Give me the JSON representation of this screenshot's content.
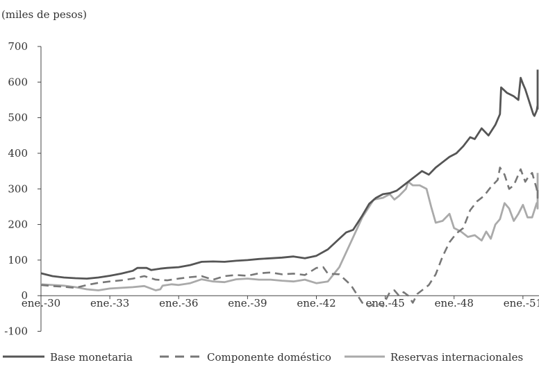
{
  "chart_data": {
    "type": "line",
    "unit_label": "(miles de pesos)",
    "x_tick_labels": [
      "ene.-30",
      "ene.-33",
      "ene.-36",
      "ene.-39",
      "ene.-42",
      "ene.-45",
      "ene.-48",
      "ene.-51"
    ],
    "x_tick_years": [
      1930,
      1933,
      1936,
      1939,
      1942,
      1945,
      1948,
      1951
    ],
    "xlim": [
      1930,
      1951.7
    ],
    "y_ticks": [
      -100,
      0,
      100,
      200,
      300,
      400,
      500,
      600,
      700
    ],
    "y_tick_labels": [
      "-100",
      "0",
      "100",
      "200",
      "300",
      "400",
      "500",
      "600",
      "700"
    ],
    "ylim": [
      -100,
      700
    ],
    "grid": false,
    "legend_position": "bottom",
    "series": [
      {
        "name": "Base monetaria",
        "color": "#555555",
        "style": "solid",
        "points": [
          [
            1930.0,
            63
          ],
          [
            1930.5,
            55
          ],
          [
            1931.0,
            51
          ],
          [
            1931.5,
            49
          ],
          [
            1932.0,
            48
          ],
          [
            1932.5,
            51
          ],
          [
            1933.0,
            56
          ],
          [
            1933.5,
            62
          ],
          [
            1934.0,
            70
          ],
          [
            1934.2,
            78
          ],
          [
            1934.6,
            78
          ],
          [
            1934.8,
            72
          ],
          [
            1935.2,
            76
          ],
          [
            1935.5,
            78
          ],
          [
            1936.0,
            80
          ],
          [
            1936.5,
            86
          ],
          [
            1937.0,
            95
          ],
          [
            1937.5,
            96
          ],
          [
            1938.0,
            95
          ],
          [
            1938.5,
            98
          ],
          [
            1939.0,
            100
          ],
          [
            1939.5,
            103
          ],
          [
            1940.0,
            105
          ],
          [
            1940.5,
            107
          ],
          [
            1941.0,
            110
          ],
          [
            1941.5,
            105
          ],
          [
            1942.0,
            112
          ],
          [
            1942.5,
            130
          ],
          [
            1943.0,
            160
          ],
          [
            1943.3,
            178
          ],
          [
            1943.6,
            185
          ],
          [
            1944.0,
            225
          ],
          [
            1944.3,
            258
          ],
          [
            1944.6,
            275
          ],
          [
            1944.9,
            285
          ],
          [
            1945.2,
            288
          ],
          [
            1945.5,
            295
          ],
          [
            1945.8,
            310
          ],
          [
            1946.0,
            320
          ],
          [
            1946.3,
            335
          ],
          [
            1946.6,
            350
          ],
          [
            1946.9,
            340
          ],
          [
            1947.2,
            360
          ],
          [
            1947.5,
            375
          ],
          [
            1947.8,
            390
          ],
          [
            1948.1,
            400
          ],
          [
            1948.4,
            420
          ],
          [
            1948.7,
            445
          ],
          [
            1948.9,
            440
          ],
          [
            1949.2,
            470
          ],
          [
            1949.5,
            450
          ],
          [
            1949.8,
            480
          ],
          [
            1950.0,
            510
          ],
          [
            1950.05,
            585
          ],
          [
            1950.3,
            570
          ],
          [
            1950.6,
            560
          ],
          [
            1950.8,
            550
          ],
          [
            1950.9,
            612
          ],
          [
            1951.0,
            595
          ],
          [
            1951.1,
            580
          ],
          [
            1951.2,
            560
          ],
          [
            1951.3,
            540
          ],
          [
            1951.45,
            510
          ],
          [
            1951.5,
            505
          ],
          [
            1951.6,
            520
          ],
          [
            1951.7,
            535
          ],
          [
            1951.8,
            525
          ],
          [
            1951.9,
            540
          ],
          [
            1952.0,
            545
          ],
          [
            1952.1,
            550
          ],
          [
            1952.2,
            635
          ]
        ]
      },
      {
        "name": "Componente doméstico",
        "color": "#777777",
        "style": "dashed",
        "points": [
          [
            1930.0,
            30
          ],
          [
            1930.5,
            27
          ],
          [
            1931.0,
            25
          ],
          [
            1931.5,
            22
          ],
          [
            1932.0,
            30
          ],
          [
            1932.5,
            36
          ],
          [
            1933.0,
            40
          ],
          [
            1933.5,
            43
          ],
          [
            1934.0,
            48
          ],
          [
            1934.5,
            55
          ],
          [
            1935.0,
            45
          ],
          [
            1935.5,
            43
          ],
          [
            1936.0,
            48
          ],
          [
            1936.5,
            52
          ],
          [
            1937.0,
            55
          ],
          [
            1937.5,
            45
          ],
          [
            1938.0,
            55
          ],
          [
            1938.5,
            58
          ],
          [
            1939.0,
            56
          ],
          [
            1939.5,
            63
          ],
          [
            1940.0,
            65
          ],
          [
            1940.5,
            60
          ],
          [
            1941.0,
            62
          ],
          [
            1941.5,
            58
          ],
          [
            1942.0,
            78
          ],
          [
            1942.3,
            80
          ],
          [
            1942.5,
            62
          ],
          [
            1943.0,
            60
          ],
          [
            1943.5,
            30
          ],
          [
            1943.8,
            0
          ],
          [
            1944.0,
            -20
          ],
          [
            1944.3,
            -30
          ],
          [
            1944.6,
            -20
          ],
          [
            1944.9,
            -30
          ],
          [
            1945.0,
            -15
          ],
          [
            1945.2,
            10
          ],
          [
            1945.4,
            15
          ],
          [
            1945.6,
            0
          ],
          [
            1945.8,
            10
          ],
          [
            1946.0,
            0
          ],
          [
            1946.2,
            -20
          ],
          [
            1946.4,
            5
          ],
          [
            1946.6,
            15
          ],
          [
            1946.9,
            30
          ],
          [
            1947.2,
            60
          ],
          [
            1947.5,
            110
          ],
          [
            1947.8,
            150
          ],
          [
            1948.1,
            175
          ],
          [
            1948.4,
            190
          ],
          [
            1948.7,
            240
          ],
          [
            1949.0,
            265
          ],
          [
            1949.3,
            280
          ],
          [
            1949.6,
            305
          ],
          [
            1949.9,
            325
          ],
          [
            1950.0,
            360
          ],
          [
            1950.2,
            340
          ],
          [
            1950.4,
            300
          ],
          [
            1950.6,
            310
          ],
          [
            1950.8,
            340
          ],
          [
            1950.9,
            355
          ],
          [
            1951.1,
            320
          ],
          [
            1951.25,
            335
          ],
          [
            1951.4,
            345
          ],
          [
            1951.6,
            300
          ],
          [
            1951.75,
            280
          ],
          [
            1951.9,
            295
          ],
          [
            1952.05,
            275
          ],
          [
            1952.2,
            290
          ]
        ]
      },
      {
        "name": "Reservas internacionales",
        "color": "#aaaaaa",
        "style": "solid",
        "points": [
          [
            1930.0,
            32
          ],
          [
            1930.5,
            30
          ],
          [
            1931.0,
            28
          ],
          [
            1931.5,
            24
          ],
          [
            1932.0,
            18
          ],
          [
            1932.5,
            15
          ],
          [
            1933.0,
            20
          ],
          [
            1933.5,
            22
          ],
          [
            1934.0,
            24
          ],
          [
            1934.5,
            27
          ],
          [
            1935.0,
            15
          ],
          [
            1935.2,
            18
          ],
          [
            1935.3,
            28
          ],
          [
            1935.7,
            32
          ],
          [
            1936.0,
            30
          ],
          [
            1936.5,
            35
          ],
          [
            1937.0,
            46
          ],
          [
            1937.5,
            40
          ],
          [
            1938.0,
            38
          ],
          [
            1938.5,
            46
          ],
          [
            1939.0,
            48
          ],
          [
            1939.5,
            45
          ],
          [
            1940.0,
            45
          ],
          [
            1940.5,
            42
          ],
          [
            1941.0,
            40
          ],
          [
            1941.5,
            45
          ],
          [
            1942.0,
            35
          ],
          [
            1942.5,
            40
          ],
          [
            1943.0,
            80
          ],
          [
            1943.5,
            150
          ],
          [
            1944.0,
            220
          ],
          [
            1944.5,
            270
          ],
          [
            1944.9,
            275
          ],
          [
            1945.2,
            285
          ],
          [
            1945.4,
            270
          ],
          [
            1945.6,
            280
          ],
          [
            1945.9,
            300
          ],
          [
            1946.0,
            320
          ],
          [
            1946.2,
            310
          ],
          [
            1946.5,
            310
          ],
          [
            1946.8,
            300
          ],
          [
            1947.0,
            250
          ],
          [
            1947.2,
            205
          ],
          [
            1947.5,
            210
          ],
          [
            1947.8,
            230
          ],
          [
            1948.0,
            190
          ],
          [
            1948.3,
            180
          ],
          [
            1948.6,
            165
          ],
          [
            1948.9,
            170
          ],
          [
            1949.2,
            155
          ],
          [
            1949.4,
            180
          ],
          [
            1949.6,
            160
          ],
          [
            1949.8,
            200
          ],
          [
            1950.0,
            215
          ],
          [
            1950.2,
            260
          ],
          [
            1950.4,
            245
          ],
          [
            1950.6,
            210
          ],
          [
            1950.8,
            230
          ],
          [
            1951.0,
            255
          ],
          [
            1951.2,
            220
          ],
          [
            1951.4,
            220
          ],
          [
            1951.6,
            260
          ],
          [
            1951.8,
            255
          ],
          [
            1952.0,
            245
          ],
          [
            1952.2,
            345
          ]
        ]
      }
    ]
  }
}
